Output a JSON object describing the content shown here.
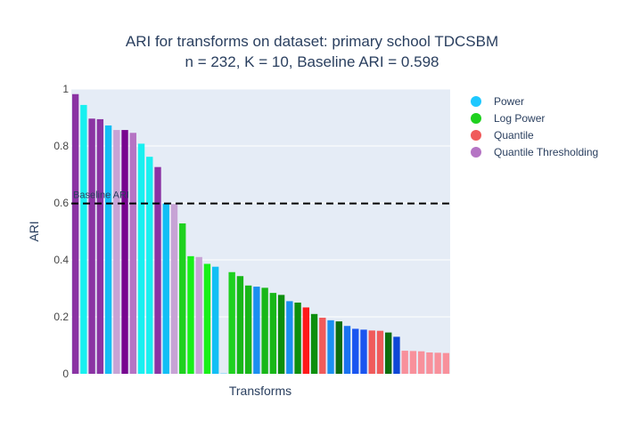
{
  "chart_data": {
    "type": "bar",
    "title": "ARI for transforms on dataset: primary school TDCSBM",
    "subtitle": "n = 232, K = 10, Baseline ARI = 0.598",
    "xlabel": "Transforms",
    "ylabel": "ARI",
    "ylim": [
      0,
      1
    ],
    "yticks": [
      0,
      0.2,
      0.4,
      0.6,
      0.8,
      1
    ],
    "ytick_labels": [
      "0",
      "0.2",
      "0.4",
      "0.6",
      "0.8",
      "1"
    ],
    "grid": true,
    "legend_position": "right",
    "baseline": {
      "label": "Baseline ARI",
      "value": 0.598
    },
    "legend": [
      {
        "name": "Power",
        "color": "#1ec8ff"
      },
      {
        "name": "Log Power",
        "color": "#1fd11f"
      },
      {
        "name": "Quantile",
        "color": "#f05b5b"
      },
      {
        "name": "Quantile Thresholding",
        "color": "#b574c4"
      }
    ],
    "bars": [
      {
        "value": 0.982,
        "color": "#8b33a3"
      },
      {
        "value": 0.944,
        "color": "#18f0f0"
      },
      {
        "value": 0.896,
        "color": "#8b33a3"
      },
      {
        "value": 0.894,
        "color": "#8b33a3"
      },
      {
        "value": 0.872,
        "color": "#12bff5"
      },
      {
        "value": 0.856,
        "color": "#c7a3d5"
      },
      {
        "value": 0.856,
        "color": "#77068f"
      },
      {
        "value": 0.846,
        "color": "#b574c4"
      },
      {
        "value": 0.808,
        "color": "#18f0f0"
      },
      {
        "value": 0.762,
        "color": "#18f0f0"
      },
      {
        "value": 0.726,
        "color": "#8b33a3"
      },
      {
        "value": 0.598,
        "color": "#12bff5"
      },
      {
        "value": 0.596,
        "color": "#c7a3d5"
      },
      {
        "value": 0.528,
        "color": "#1fd11f"
      },
      {
        "value": 0.413,
        "color": "#18f018"
      },
      {
        "value": 0.41,
        "color": "#c7a3d5"
      },
      {
        "value": 0.386,
        "color": "#18f018"
      },
      {
        "value": 0.376,
        "color": "#12bff5"
      },
      {
        "value": 0.001,
        "color": "#12bff5"
      },
      {
        "value": 0.357,
        "color": "#1fd11f"
      },
      {
        "value": 0.343,
        "color": "#18b718"
      },
      {
        "value": 0.31,
        "color": "#18b718"
      },
      {
        "value": 0.306,
        "color": "#1a8ff0"
      },
      {
        "value": 0.302,
        "color": "#18b718"
      },
      {
        "value": 0.284,
        "color": "#18b718"
      },
      {
        "value": 0.277,
        "color": "#0d8f0d"
      },
      {
        "value": 0.255,
        "color": "#1a8ff0"
      },
      {
        "value": 0.25,
        "color": "#0d8f0d"
      },
      {
        "value": 0.233,
        "color": "#ff1a1a"
      },
      {
        "value": 0.21,
        "color": "#0d8f0d"
      },
      {
        "value": 0.197,
        "color": "#f05b5b"
      },
      {
        "value": 0.188,
        "color": "#1a8ff0"
      },
      {
        "value": 0.184,
        "color": "#0d6e0d"
      },
      {
        "value": 0.168,
        "color": "#1a73f0"
      },
      {
        "value": 0.158,
        "color": "#1a55f0"
      },
      {
        "value": 0.155,
        "color": "#1a55f0"
      },
      {
        "value": 0.152,
        "color": "#f05b5b"
      },
      {
        "value": 0.151,
        "color": "#f05b5b"
      },
      {
        "value": 0.145,
        "color": "#0d6e0d"
      },
      {
        "value": 0.13,
        "color": "#0d47d6"
      },
      {
        "value": 0.081,
        "color": "#f8909b"
      },
      {
        "value": 0.08,
        "color": "#f8909b"
      },
      {
        "value": 0.079,
        "color": "#f8909b"
      },
      {
        "value": 0.075,
        "color": "#f8909b"
      },
      {
        "value": 0.074,
        "color": "#f8909b"
      },
      {
        "value": 0.073,
        "color": "#f8909b"
      }
    ]
  }
}
